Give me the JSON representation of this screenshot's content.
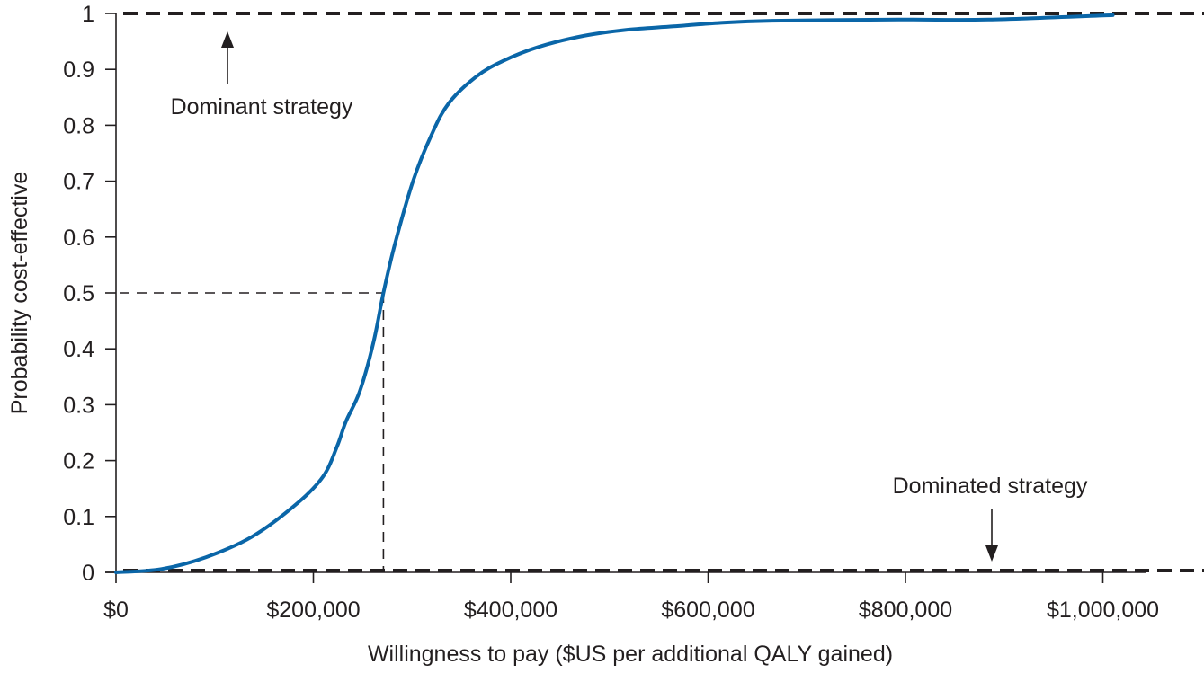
{
  "chart_data": {
    "type": "line",
    "title": "",
    "xlabel": "Willingness to pay ($US per additional QALY gained)",
    "ylabel": "Probability cost-effective",
    "xlim": [
      0,
      1050000
    ],
    "ylim": [
      0,
      1
    ],
    "grid": false,
    "legend": null,
    "x_ticks": [
      0,
      200000,
      400000,
      600000,
      800000,
      1000000
    ],
    "x_tick_labels": [
      "$0",
      "$200,000",
      "$400,000",
      "$600,000",
      "$800,000",
      "$1,000,000"
    ],
    "y_ticks": [
      0,
      0.1,
      0.2,
      0.3,
      0.4,
      0.5,
      0.6,
      0.7,
      0.8,
      0.9,
      1
    ],
    "y_tick_labels": [
      "0",
      "0.1",
      "0.2",
      "0.3",
      "0.4",
      "0.5",
      "0.6",
      "0.7",
      "0.8",
      "0.9",
      "1"
    ],
    "series": [
      {
        "name": "Cost-effectiveness acceptability curve",
        "color": "#0a66a8",
        "x": [
          0,
          46000,
          91000,
          138000,
          184000,
          210000,
          224000,
          233000,
          247000,
          261000,
          271000,
          283000,
          301000,
          319000,
          337000,
          365000,
          392000,
          428000,
          474000,
          519000,
          565000,
          610000,
          665000,
          793000,
          884000,
          1010000
        ],
        "y": [
          0.0,
          0.006,
          0.027,
          0.064,
          0.124,
          0.172,
          0.225,
          0.27,
          0.324,
          0.412,
          0.5,
          0.59,
          0.7,
          0.78,
          0.839,
          0.887,
          0.915,
          0.94,
          0.96,
          0.971,
          0.977,
          0.983,
          0.987,
          0.989,
          0.989,
          0.997
        ]
      }
    ],
    "reference_lines": [
      {
        "name": "Dominant strategy line",
        "orientation": "horizontal",
        "y": 1,
        "style": "dashed",
        "color": "#231f20"
      },
      {
        "name": "Dominated strategy line",
        "orientation": "horizontal",
        "y": 0,
        "style": "dashed",
        "color": "#231f20"
      },
      {
        "name": "50% probability",
        "orientation": "horizontal",
        "y": 0.5,
        "x_end": 271000,
        "style": "dashed",
        "color": "#231f20"
      },
      {
        "name": "WTP at 50%",
        "orientation": "vertical",
        "x": 271000,
        "y_end": 0.5,
        "style": "dashed",
        "color": "#231f20"
      }
    ],
    "annotations": [
      {
        "text": "Dominant strategy",
        "arrow": "up",
        "points_to_y": 1
      },
      {
        "text": "Dominated strategy",
        "arrow": "down",
        "points_to_y": 0
      }
    ]
  },
  "labels": {
    "xlabel": "Willingness to pay ($US per additional QALY gained)",
    "ylabel": "Probability cost-effective",
    "dominant": "Dominant strategy",
    "dominated": "Dominated strategy"
  },
  "colors": {
    "curve": "#0a66a8",
    "axis": "#231f20"
  }
}
